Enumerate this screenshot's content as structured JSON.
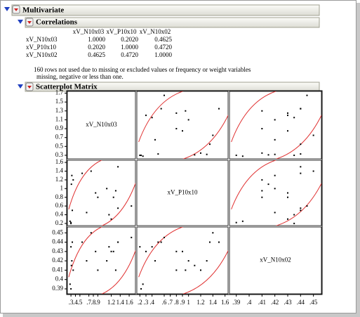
{
  "header": {
    "title": "Multivariate"
  },
  "correlations": {
    "title": "Correlations",
    "columns": [
      "xV_N10x03",
      "xV_P10x10",
      "xV_N10x02"
    ],
    "rows": [
      {
        "label": "xV_N10x03",
        "values": [
          "1.0000",
          "0.2020",
          "0.4625"
        ]
      },
      {
        "label": "xV_P10x10",
        "values": [
          "0.2020",
          "1.0000",
          "0.4720"
        ]
      },
      {
        "label": "xV_N10x02",
        "values": [
          "0.4625",
          "0.4720",
          "1.0000"
        ]
      }
    ],
    "note": [
      "160 rows not used due to missing or excluded values or frequency or weight variables",
      "missing, negative or less than one."
    ]
  },
  "chart_data": {
    "type": "scatter-matrix",
    "title": "Scatterplot Matrix",
    "variables": [
      {
        "name": "xV_N10x03",
        "values": [
          0.28,
          0.3,
          0.32,
          1.2,
          1.35,
          1.3,
          1.1,
          1.25,
          0.55,
          0.75,
          0.9,
          0.65,
          0.33,
          0.35,
          1.35,
          0.3,
          1.65,
          0.85,
          1.15,
          0.31
        ],
        "ylim": [
          0.22,
          1.74
        ],
        "yticks": [
          1.7,
          1.5,
          1.3,
          1.1,
          0.9,
          0.7,
          0.5,
          0.3
        ],
        "xticks": [
          {
            "value": 0.3,
            "label": ".3"
          },
          {
            "value": 0.4,
            "label": ".4"
          },
          {
            "value": 0.5,
            "label": ".5"
          },
          {
            "value": 0.7,
            "label": ".7"
          },
          {
            "value": 0.8,
            "label": ".8"
          },
          {
            "value": 0.9,
            "label": ".9"
          },
          1.2,
          1.4,
          1.6
        ]
      },
      {
        "name": "xV_P10x10",
        "values": [
          0.25,
          0.22,
          1.3,
          0.3,
          0.55,
          0.95,
          1.0,
          0.8,
          1.35,
          1.4,
          0.8,
          0.45,
          0.5,
          1.2,
          1.5,
          0.2,
          0.6,
          0.9,
          0.4,
          1.1
        ],
        "ylim": [
          0.15,
          1.65
        ],
        "yticks": [
          1.6,
          1.4,
          1.2,
          1,
          0.8,
          0.6,
          0.4,
          0.2
        ],
        "xticks": [
          {
            "value": 0.2,
            "label": ".2"
          },
          {
            "value": 0.3,
            "label": ".3"
          },
          {
            "value": 0.4,
            "label": ".4"
          },
          {
            "value": 0.6,
            "label": ".6"
          },
          {
            "value": 0.7,
            "label": ".7"
          },
          {
            "value": 0.8,
            "label": ".8"
          },
          {
            "value": 0.9,
            "label": ".9"
          },
          1,
          1.2,
          1.4,
          1.6
        ]
      },
      {
        "name": "xV_N10x02",
        "values": [
          0.395,
          0.39,
          0.42,
          0.43,
          0.44,
          0.41,
          0.42,
          0.43,
          0.44,
          0.45,
          0.41,
          0.42,
          0.44,
          0.41,
          0.44,
          0.435,
          0.445,
          0.43,
          0.435,
          0.415
        ],
        "ylim": [
          0.3847,
          0.4562
        ],
        "yticks": [
          0.45,
          0.44,
          0.43,
          0.42,
          0.41,
          0.4,
          0.39
        ],
        "xticks": [
          {
            "value": 0.39,
            "label": ".39"
          },
          {
            "value": 0.4,
            "label": ".4"
          },
          {
            "value": 0.41,
            "label": ".41"
          },
          {
            "value": 0.42,
            "label": ".42"
          },
          {
            "value": 0.43,
            "label": ".43"
          },
          {
            "value": 0.44,
            "label": ".44"
          },
          {
            "value": 0.45,
            "label": ".45"
          }
        ]
      }
    ],
    "point_color": "#000000",
    "ellipse_color": "#e03030"
  }
}
